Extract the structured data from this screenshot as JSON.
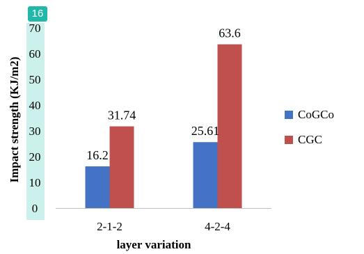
{
  "page_number": "16",
  "colors": {
    "CoGCo": "#4472c4",
    "CGC": "#c0504d",
    "axis": "#bfbfbf",
    "badge": "#20b8a8",
    "tick_highlight": "#ccf0ec"
  },
  "chart_data": {
    "type": "bar",
    "categories": [
      "2-1-2",
      "4-2-4"
    ],
    "series": [
      {
        "name": "CoGCo",
        "values": [
          16.2,
          25.61
        ],
        "labels": [
          "16.2",
          "25.61"
        ]
      },
      {
        "name": "CGC",
        "values": [
          31.74,
          63.6
        ],
        "labels": [
          "31.74",
          "63.6"
        ]
      }
    ],
    "title": "",
    "xlabel": "layer variation",
    "ylabel": "Impact strength (KJ/m2)",
    "ylim": [
      0,
      70
    ],
    "yticks": [
      "0",
      "10",
      "20",
      "30",
      "40",
      "50",
      "60",
      "70"
    ],
    "grid": false,
    "legend": "right"
  }
}
